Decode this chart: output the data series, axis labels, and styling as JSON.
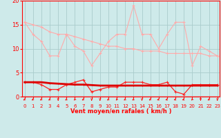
{
  "x": [
    0,
    1,
    2,
    3,
    4,
    5,
    6,
    7,
    8,
    9,
    10,
    11,
    12,
    13,
    14,
    15,
    16,
    17,
    18,
    19,
    20,
    21,
    22,
    23
  ],
  "line_rafales": [
    15.5,
    13.0,
    11.5,
    8.5,
    8.5,
    13.0,
    10.5,
    9.5,
    6.5,
    9.0,
    11.5,
    13.0,
    13.0,
    19.0,
    13.0,
    13.0,
    10.0,
    13.0,
    15.5,
    15.5,
    6.5,
    10.5,
    9.5,
    8.5
  ],
  "line_moy_high": [
    15.5,
    15.0,
    14.5,
    13.5,
    13.0,
    13.0,
    12.5,
    12.0,
    11.5,
    11.0,
    10.5,
    10.5,
    10.0,
    10.0,
    9.5,
    9.5,
    9.5,
    9.0,
    9.0,
    9.0,
    9.0,
    9.0,
    8.5,
    8.5
  ],
  "line_vent_moy": [
    3.0,
    3.0,
    2.5,
    1.5,
    1.5,
    2.5,
    3.0,
    3.5,
    1.0,
    1.5,
    2.0,
    2.0,
    3.0,
    3.0,
    3.0,
    2.5,
    2.5,
    3.0,
    1.0,
    0.5,
    2.5,
    2.5,
    2.5,
    2.5
  ],
  "line_moy_low": [
    3.0,
    3.0,
    3.0,
    2.8,
    2.7,
    2.6,
    2.5,
    2.5,
    2.4,
    2.3,
    2.3,
    2.3,
    2.3,
    2.3,
    2.3,
    2.3,
    2.3,
    2.3,
    2.3,
    2.3,
    2.3,
    2.3,
    2.3,
    2.3
  ],
  "color_rafales": "#ffaaaa",
  "color_moy_high": "#ffaaaa",
  "color_vent_moy": "#ff2222",
  "color_moy_low": "#dd0000",
  "bg_color": "#ceeaea",
  "grid_color": "#aacccc",
  "axis_color": "#ff0000",
  "xlabel": "Vent moyen/en rafales ( km/h )",
  "xlim": [
    -0.3,
    23.3
  ],
  "ylim": [
    0,
    20
  ],
  "yticks": [
    0,
    5,
    10,
    15,
    20
  ],
  "xticks": [
    0,
    1,
    2,
    3,
    4,
    5,
    6,
    7,
    8,
    9,
    10,
    11,
    12,
    13,
    14,
    15,
    16,
    17,
    18,
    19,
    20,
    21,
    22,
    23
  ],
  "arrow_angles_deg": [
    225,
    225,
    225,
    225,
    270,
    225,
    240,
    225,
    270,
    270,
    225,
    240,
    225,
    225,
    270,
    225,
    210,
    210,
    210,
    210,
    240,
    270,
    225,
    270
  ]
}
